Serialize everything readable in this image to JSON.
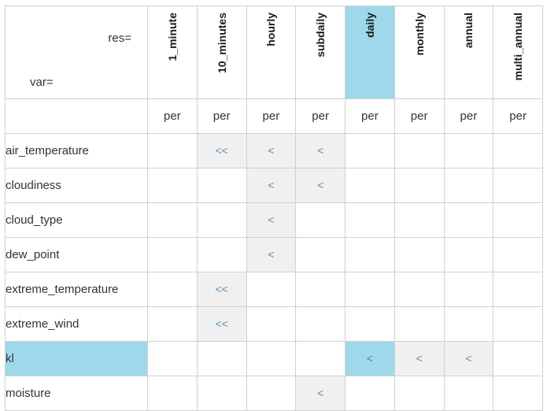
{
  "corner": {
    "res_label": "res=",
    "var_label": "var="
  },
  "resolutions": [
    {
      "label": "1_minute",
      "active": false
    },
    {
      "label": "10_minutes",
      "active": false
    },
    {
      "label": "hourly",
      "active": false
    },
    {
      "label": "subdaily",
      "active": false
    },
    {
      "label": "daily",
      "active": true
    },
    {
      "label": "monthly",
      "active": false
    },
    {
      "label": "annual",
      "active": false
    },
    {
      "label": "multi_annual",
      "active": false
    }
  ],
  "per_label": "per",
  "variables": [
    {
      "name": "air_temperature",
      "active": false,
      "cells": [
        {
          "t": "",
          "bg": ""
        },
        {
          "t": "<<",
          "bg": "gray"
        },
        {
          "t": "<",
          "bg": "gray"
        },
        {
          "t": "<",
          "bg": "gray"
        },
        {
          "t": "",
          "bg": ""
        },
        {
          "t": "",
          "bg": ""
        },
        {
          "t": "",
          "bg": ""
        },
        {
          "t": "",
          "bg": ""
        }
      ]
    },
    {
      "name": "cloudiness",
      "active": false,
      "cells": [
        {
          "t": "",
          "bg": ""
        },
        {
          "t": "",
          "bg": ""
        },
        {
          "t": "<",
          "bg": "gray"
        },
        {
          "t": "<",
          "bg": "gray"
        },
        {
          "t": "",
          "bg": ""
        },
        {
          "t": "",
          "bg": ""
        },
        {
          "t": "",
          "bg": ""
        },
        {
          "t": "",
          "bg": ""
        }
      ]
    },
    {
      "name": "cloud_type",
      "active": false,
      "cells": [
        {
          "t": "",
          "bg": ""
        },
        {
          "t": "",
          "bg": ""
        },
        {
          "t": "<",
          "bg": "gray"
        },
        {
          "t": "",
          "bg": ""
        },
        {
          "t": "",
          "bg": ""
        },
        {
          "t": "",
          "bg": ""
        },
        {
          "t": "",
          "bg": ""
        },
        {
          "t": "",
          "bg": ""
        }
      ]
    },
    {
      "name": "dew_point",
      "active": false,
      "cells": [
        {
          "t": "",
          "bg": ""
        },
        {
          "t": "",
          "bg": ""
        },
        {
          "t": "<",
          "bg": "gray"
        },
        {
          "t": "",
          "bg": ""
        },
        {
          "t": "",
          "bg": ""
        },
        {
          "t": "",
          "bg": ""
        },
        {
          "t": "",
          "bg": ""
        },
        {
          "t": "",
          "bg": ""
        }
      ]
    },
    {
      "name": "extreme_temperature",
      "active": false,
      "cells": [
        {
          "t": "",
          "bg": ""
        },
        {
          "t": "<<",
          "bg": "gray"
        },
        {
          "t": "",
          "bg": ""
        },
        {
          "t": "",
          "bg": ""
        },
        {
          "t": "",
          "bg": ""
        },
        {
          "t": "",
          "bg": ""
        },
        {
          "t": "",
          "bg": ""
        },
        {
          "t": "",
          "bg": ""
        }
      ]
    },
    {
      "name": "extreme_wind",
      "active": false,
      "cells": [
        {
          "t": "",
          "bg": ""
        },
        {
          "t": "<<",
          "bg": "gray"
        },
        {
          "t": "",
          "bg": ""
        },
        {
          "t": "",
          "bg": ""
        },
        {
          "t": "",
          "bg": ""
        },
        {
          "t": "",
          "bg": ""
        },
        {
          "t": "",
          "bg": ""
        },
        {
          "t": "",
          "bg": ""
        }
      ]
    },
    {
      "name": "kl",
      "active": true,
      "cells": [
        {
          "t": "",
          "bg": ""
        },
        {
          "t": "",
          "bg": ""
        },
        {
          "t": "",
          "bg": ""
        },
        {
          "t": "",
          "bg": ""
        },
        {
          "t": "<",
          "bg": "blue"
        },
        {
          "t": "<",
          "bg": "gray"
        },
        {
          "t": "<",
          "bg": "gray"
        },
        {
          "t": "",
          "bg": ""
        }
      ]
    },
    {
      "name": "moisture",
      "active": false,
      "cells": [
        {
          "t": "",
          "bg": ""
        },
        {
          "t": "",
          "bg": ""
        },
        {
          "t": "",
          "bg": ""
        },
        {
          "t": "<",
          "bg": "gray"
        },
        {
          "t": "",
          "bg": ""
        },
        {
          "t": "",
          "bg": ""
        },
        {
          "t": "",
          "bg": ""
        },
        {
          "t": "",
          "bg": ""
        }
      ]
    }
  ],
  "colors": {
    "active_highlight": "#9fd8ea",
    "available_cell": "#f0f0f0",
    "link": "#5b8fb0"
  }
}
